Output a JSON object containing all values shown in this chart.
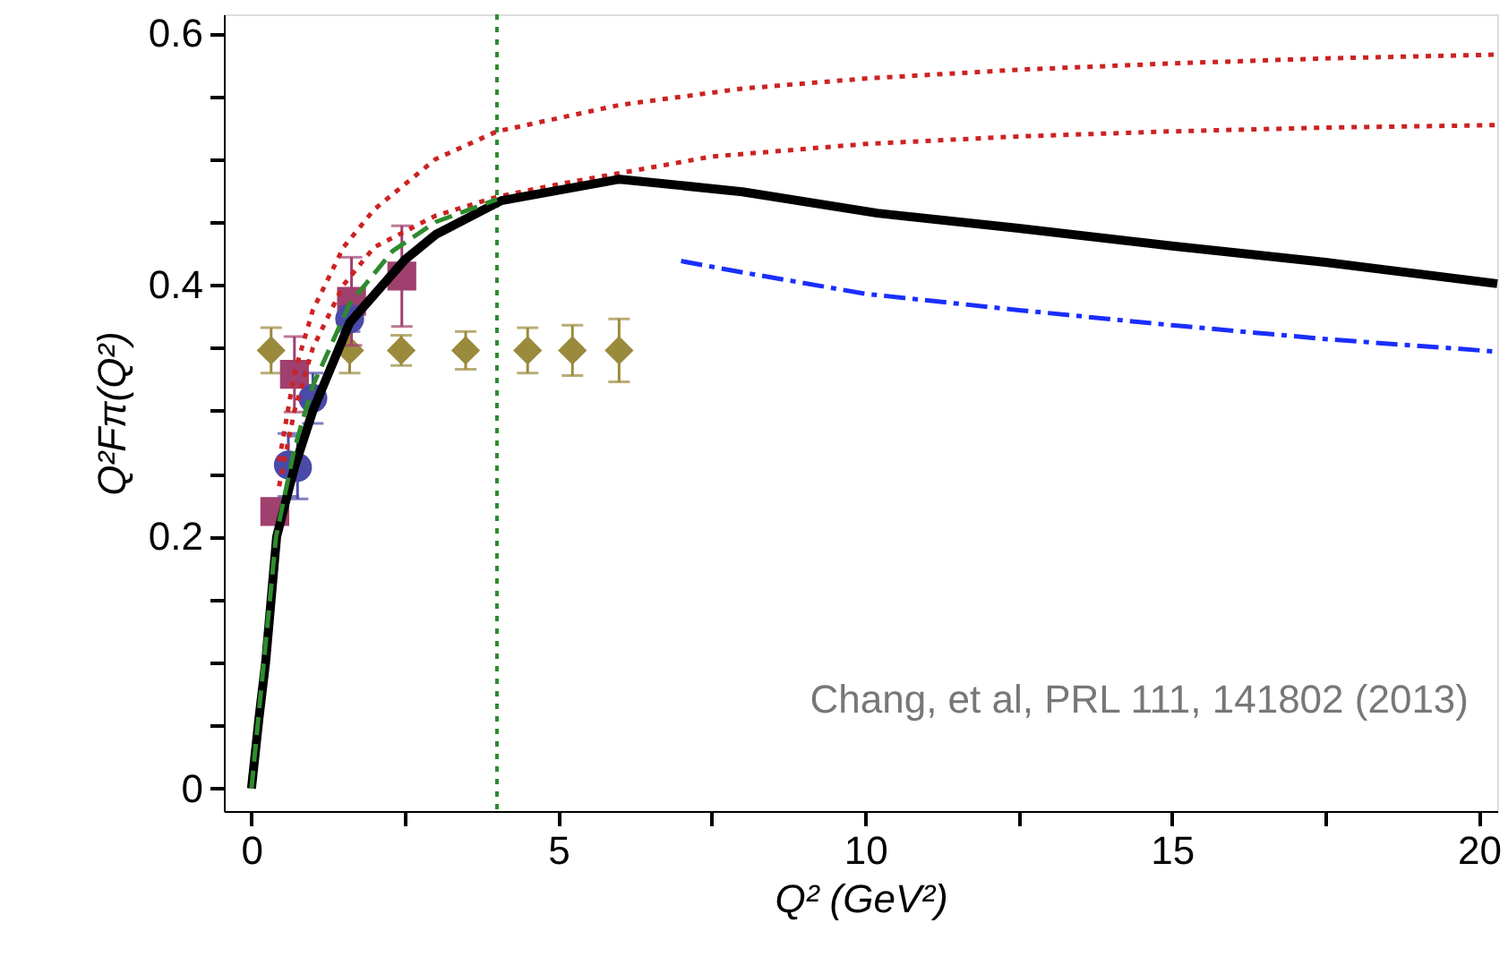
{
  "chart_data": {
    "type": "line",
    "xlabel": "Q² (GeV²)",
    "ylabel": "Q²Fπ(Q²)",
    "xlim": [
      -0.45,
      20.3
    ],
    "ylim": [
      -0.018,
      0.615
    ],
    "xticks": [
      0,
      {
        "value": 2.5,
        "label": null
      },
      5,
      {
        "value": 7.5,
        "label": null
      },
      10,
      {
        "value": 12.5,
        "label": null
      },
      15,
      {
        "value": 17.5,
        "label": null
      },
      20
    ],
    "yticks": [
      0,
      {
        "value": 0.05,
        "label": null
      },
      {
        "value": 0.1,
        "label": null
      },
      {
        "value": 0.15,
        "label": null
      },
      {
        "value": 0.2,
        "label": "0.2"
      },
      {
        "value": 0.25,
        "label": null
      },
      {
        "value": 0.3,
        "label": null
      },
      {
        "value": 0.35,
        "label": null
      },
      {
        "value": 0.4,
        "label": "0.4"
      },
      {
        "value": 0.45,
        "label": null
      },
      {
        "value": 0.5,
        "label": null
      },
      {
        "value": 0.55,
        "label": null
      },
      {
        "value": 0.6,
        "label": "0.6"
      }
    ],
    "grid": false,
    "ref_lines": [
      {
        "axis": "x",
        "value": 4,
        "color": "#2e8b2e",
        "line_style": "dotted"
      }
    ],
    "annotations": [
      "Chang, et al, PRL 111, 141802 (2013)"
    ],
    "series": [
      {
        "color": "#cc2222",
        "line_style": "dotted",
        "x": [
          0.45,
          0.7,
          1.0,
          1.5,
          2.0,
          3.0,
          4.0,
          6,
          8,
          10,
          12.5,
          15,
          17.5,
          20.3
        ],
        "values": [
          0.26,
          0.33,
          0.38,
          0.43,
          0.46,
          0.5,
          0.522,
          0.543,
          0.556,
          0.564,
          0.571,
          0.576,
          0.58,
          0.583
        ]
      },
      {
        "color": "#cc2222",
        "line_style": "dotted",
        "x": [
          0.45,
          0.7,
          1.0,
          1.5,
          2.0,
          3.0,
          4.0,
          5,
          7.5,
          10,
          12.5,
          15,
          17.5,
          20.3
        ],
        "values": [
          0.24,
          0.3,
          0.35,
          0.4,
          0.43,
          0.455,
          0.47,
          0.48,
          0.502,
          0.512,
          0.518,
          0.522,
          0.525,
          0.527
        ]
      },
      {
        "color": "#1a2eff",
        "line_style": "dashdot",
        "x": [
          7,
          8,
          10,
          12.5,
          15,
          17.5,
          20.3
        ],
        "values": [
          0.419,
          0.41,
          0.393,
          0.38,
          0.368,
          0.357,
          0.347
        ]
      },
      {
        "color": "#000000",
        "line_style": "solid",
        "x": [
          0,
          0.12,
          0.23,
          0.32,
          0.41,
          0.7,
          1.0,
          1.6,
          2.5,
          3.0,
          4.07,
          6.0,
          8.0,
          10.2,
          12.5,
          15,
          17.5,
          20.3
        ],
        "values": [
          0,
          0.055,
          0.1,
          0.15,
          0.2,
          0.255,
          0.3,
          0.37,
          0.42,
          0.44,
          0.467,
          0.484,
          0.474,
          0.457,
          0.445,
          0.431,
          0.418,
          0.401
        ]
      },
      {
        "color": "#2e8b2e",
        "line_style": "dashed",
        "x": [
          0,
          0.2,
          0.4,
          0.7,
          1.0,
          1.6,
          2.3,
          3.0,
          4.0
        ],
        "values": [
          0,
          0.1,
          0.2,
          0.27,
          0.32,
          0.385,
          0.427,
          0.45,
          0.468
        ]
      },
      {
        "type": "scatter",
        "color": "#9a8a3c",
        "marker": "diamond",
        "x": [
          0.32,
          1.6,
          2.44,
          3.49,
          4.5,
          5.23,
          5.99
        ],
        "values": [
          0.348,
          0.348,
          0.348,
          0.348,
          0.348,
          0.348,
          0.348
        ],
        "errors": [
          0.018,
          0.018,
          0.012,
          0.015,
          0.018,
          0.02,
          0.025
        ]
      },
      {
        "type": "scatter",
        "color": "#a0406e",
        "marker": "square",
        "x": [
          0.38,
          0.7,
          1.63,
          2.45
        ],
        "values": [
          0.22,
          0.329,
          0.387,
          0.407
        ],
        "errors": [
          0.008,
          0.03,
          0.035,
          0.04
        ]
      },
      {
        "type": "scatter",
        "color": "#4a4aa8",
        "marker": "circle",
        "x": [
          0.6,
          0.75,
          1.0,
          1.6
        ],
        "values": [
          0.257,
          0.255,
          0.31,
          0.373
        ],
        "errors": [
          0.025,
          0.025,
          0.02,
          0.01
        ]
      }
    ]
  }
}
